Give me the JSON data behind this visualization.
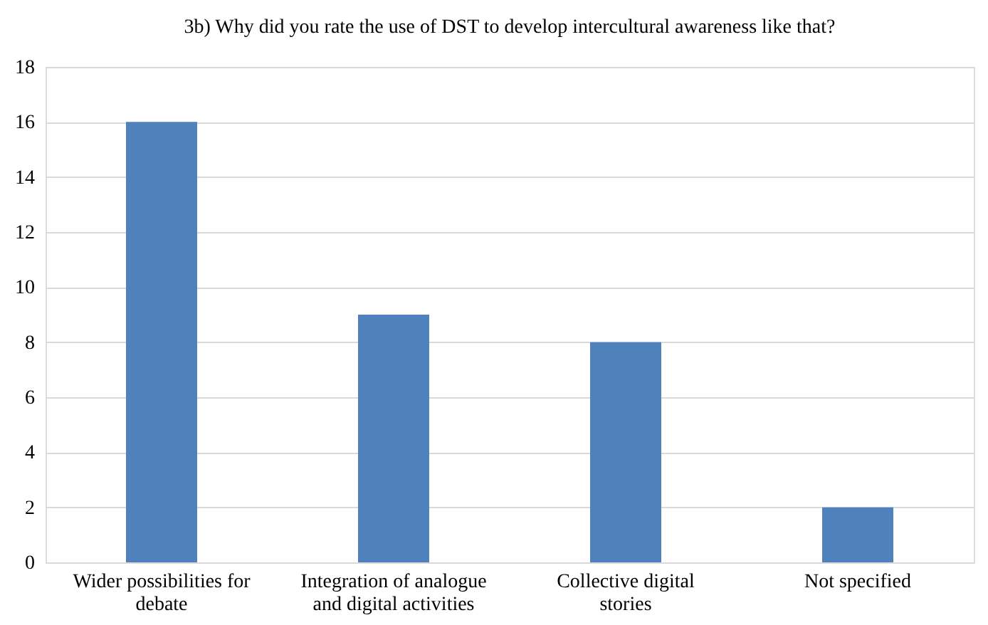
{
  "chart_data": {
    "type": "bar",
    "title": "3b) Why did you rate the use of DST to develop intercultural awareness like that?",
    "categories": [
      "Wider possibilities for debate",
      "Integration of analogue and digital activities",
      "Collective digital stories",
      "Not specified"
    ],
    "values": [
      16,
      9,
      8,
      2
    ],
    "color": "#4f81bd",
    "ylim": [
      0,
      18
    ],
    "yticks": [
      0,
      2,
      4,
      6,
      8,
      10,
      12,
      14,
      16,
      18
    ],
    "grid": "y"
  }
}
